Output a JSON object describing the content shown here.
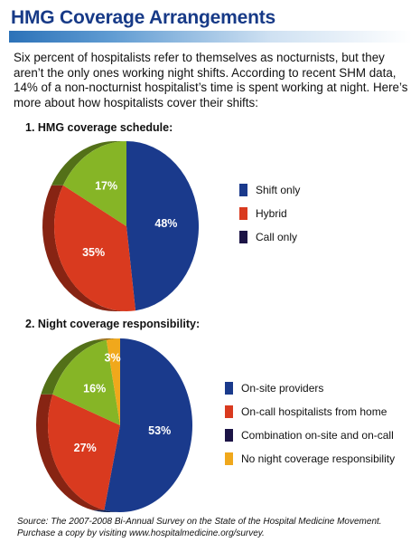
{
  "title": "HMG Coverage Arrangements",
  "intro": "Six percent of hospitalists refer to themselves as nocturnists, but they aren’t the only ones working night shifts. According to recent SHM data, 14% of a non-nocturnist hospitalist’s time is spent working at night. Here’s more about how hospitalists cover their shifts:",
  "source": "Source: The 2007-2008 Bi-Annual Survey on the State of the Hospital Medicine Movement. Purchase a copy by visiting www.hospitalmedicine.org/survey.",
  "chart_data": [
    {
      "type": "pie",
      "title": "1. HMG coverage schedule:",
      "categories": [
        "Shift only",
        "Hybrid",
        "Call only"
      ],
      "values": [
        48,
        35,
        17
      ],
      "labels": [
        "48%",
        "35%",
        "17%"
      ],
      "legend": [
        "Shift only",
        "Hybrid",
        "Call only"
      ],
      "legend_colors": [
        "#1a3a8c",
        "#d93a1f",
        "#1c1446"
      ],
      "slice_colors": [
        "#1a3a8c",
        "#d93a1f",
        "#86b526"
      ],
      "legend_position": "right"
    },
    {
      "type": "pie",
      "title": "2. Night coverage responsibility:",
      "categories": [
        "On-site providers",
        "On-call hospitalists from home",
        "Combination on-site and on-call",
        "No night coverage responsibility"
      ],
      "values": [
        53,
        27,
        16,
        3
      ],
      "labels": [
        "53%",
        "27%",
        "16%",
        "3%"
      ],
      "legend": [
        "On-site providers",
        "On-call hospitalists from home",
        "Combination on-site and on-call",
        "No night coverage responsibility"
      ],
      "legend_colors": [
        "#1a3a8c",
        "#d93a1f",
        "#1c1446",
        "#f0a81c"
      ],
      "slice_colors": [
        "#1a3a8c",
        "#d93a1f",
        "#86b526",
        "#f0a81c"
      ],
      "legend_position": "right"
    }
  ]
}
